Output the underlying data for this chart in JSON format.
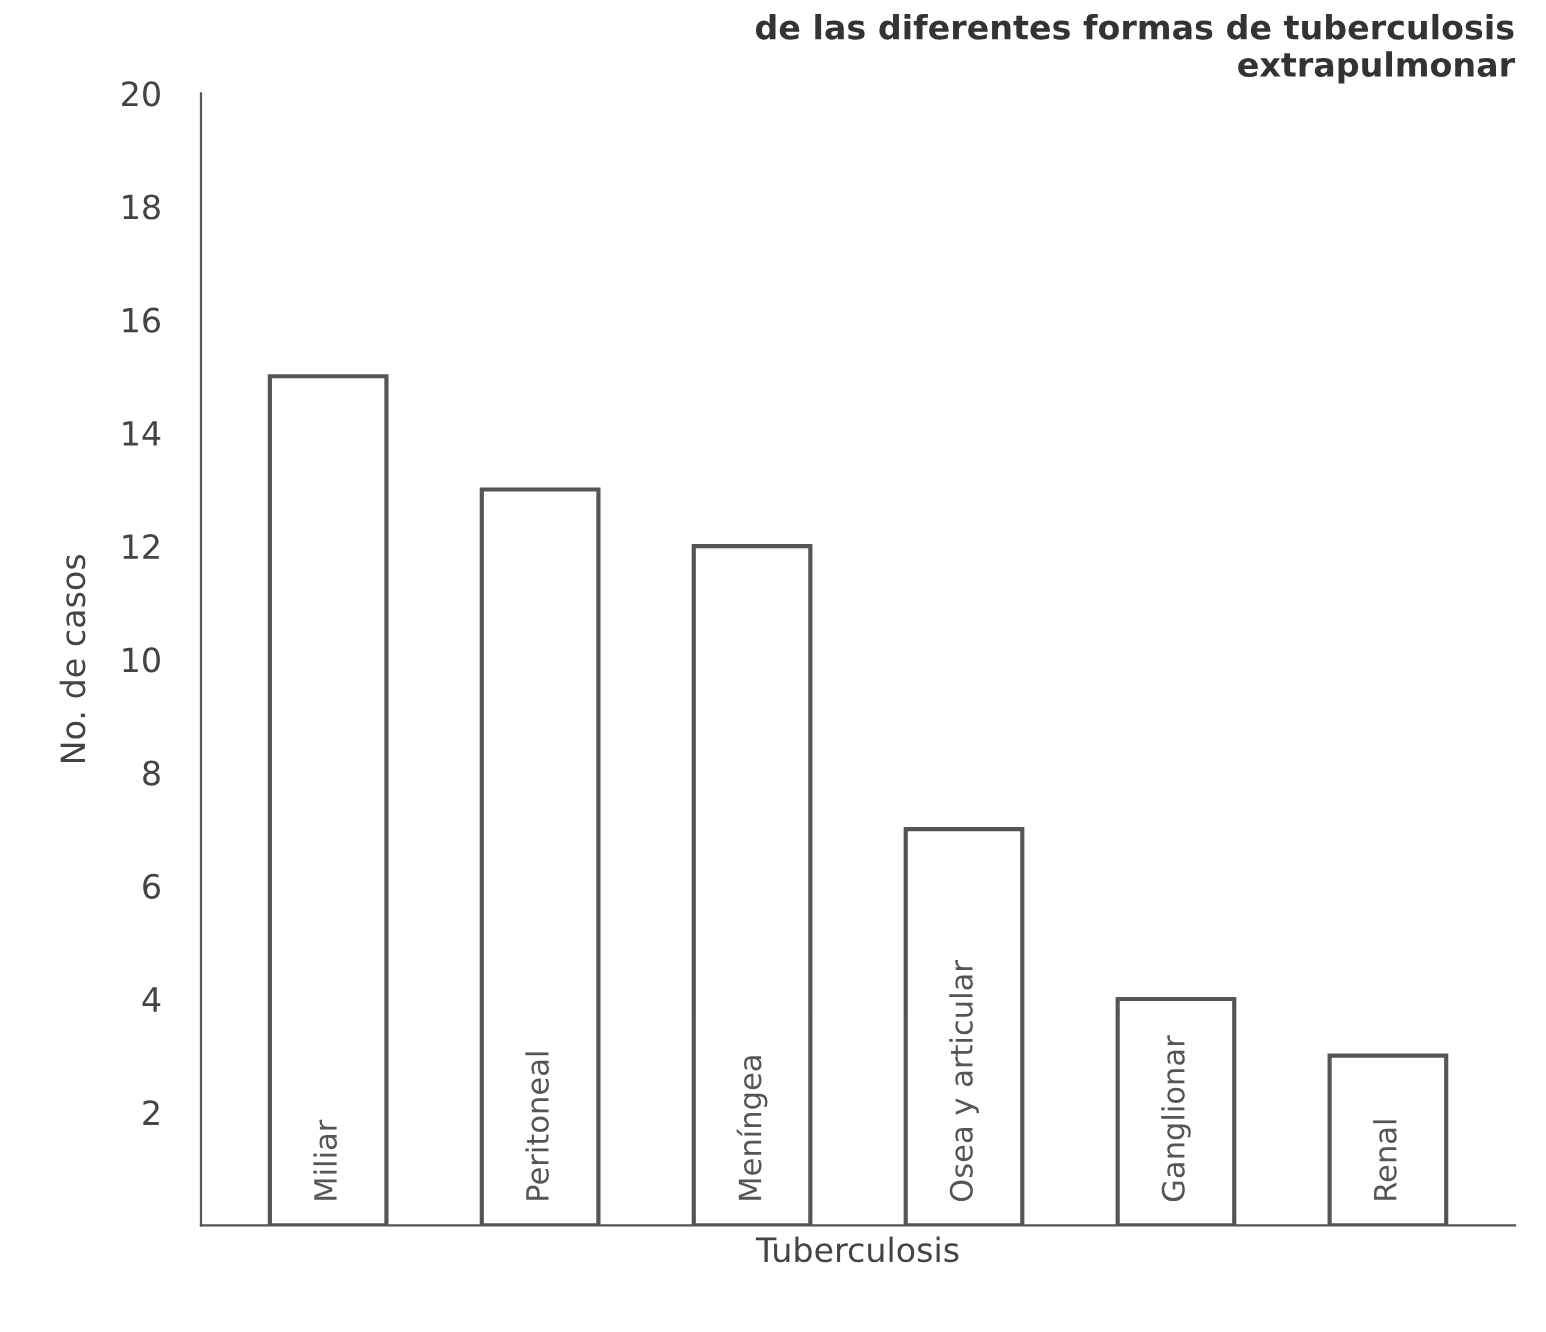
{
  "chart_data": {
    "type": "bar",
    "title": "de las diferentes formas de tuberculosis\nextrapulmonar",
    "xlabel": "Tuberculosis",
    "ylabel": "No. de casos",
    "categories": [
      "Miliar",
      "Peritoneal",
      "Meníngea",
      "Osea y articular",
      "Ganglionar",
      "Renal"
    ],
    "values": [
      15,
      13,
      12,
      7,
      4,
      3
    ],
    "color": "#ffffff",
    "ylim": [
      0,
      20
    ],
    "yticks": [
      2,
      4,
      6,
      8,
      10,
      12,
      14,
      16,
      18,
      20
    ],
    "grid": false,
    "legend": false
  }
}
